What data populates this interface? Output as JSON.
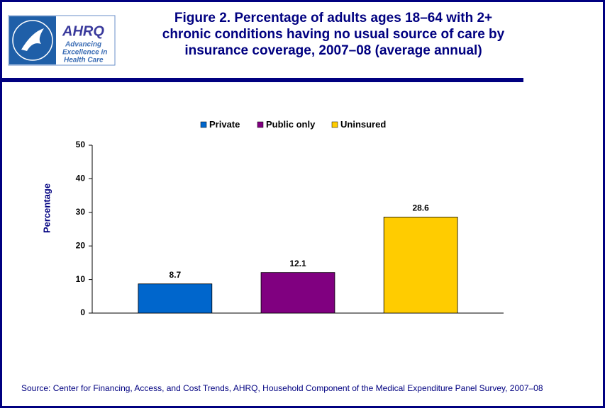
{
  "header": {
    "logo_name": "AHRQ",
    "logo_tagline": [
      "Advancing",
      "Excellence in",
      "Health Care"
    ]
  },
  "chart_data": {
    "type": "bar",
    "title": [
      "Figure 2. Percentage of adults ages 18–64 with 2+",
      "chronic conditions having no usual source of care by",
      "insurance coverage, 2007–08 (average annual)"
    ],
    "y_label": "Percentage",
    "categories": [
      null
    ],
    "series": [
      {
        "name": "Private",
        "color": "#0066cc",
        "values": [
          8.7
        ]
      },
      {
        "name": "Public only",
        "color": "#800080",
        "values": [
          12.1
        ]
      },
      {
        "name": "Uninsured",
        "color": "#ffcc00",
        "values": [
          28.6
        ]
      }
    ],
    "ylim": [
      0,
      50
    ],
    "yticks": [
      0,
      10,
      20,
      30,
      40,
      50
    ],
    "grid": false,
    "legend": "top",
    "source": "Source: Center for Financing, Access, and Cost Trends, AHRQ, Household Component of the Medical Expenditure Panel Survey, 2007–08"
  }
}
